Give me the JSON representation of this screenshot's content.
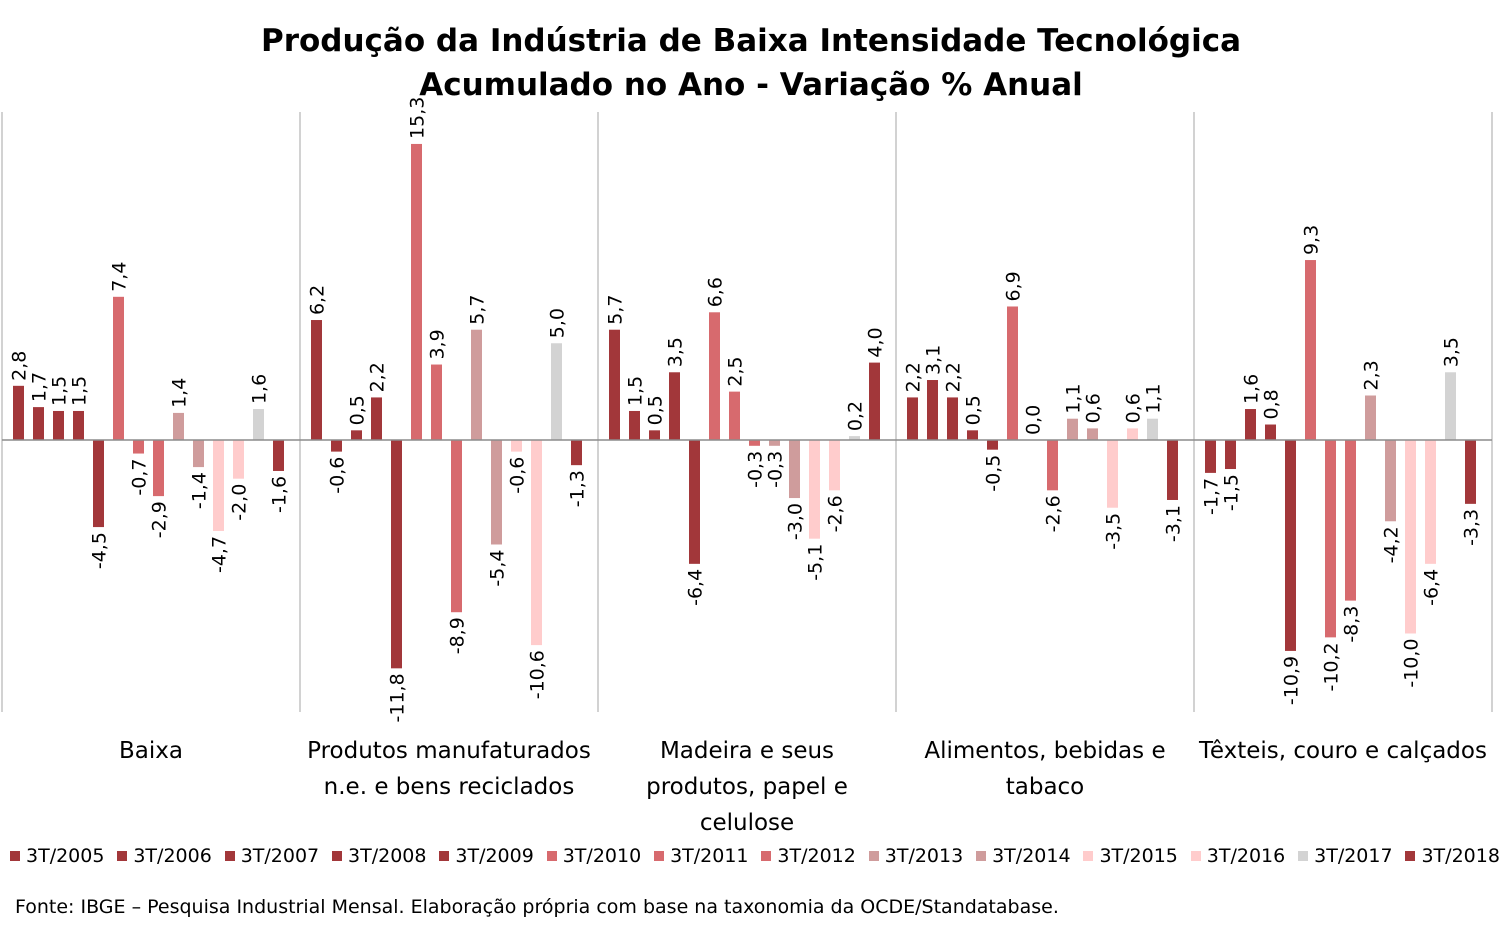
{
  "chart_data": {
    "type": "bar",
    "title": "Produção da Indústria de Baixa Intensidade Tecnológica",
    "subtitle": "Acumulado no Ano - Variação % Anual",
    "categories": [
      "Baixa",
      "Produtos manufaturados n.e. e bens reciclados",
      "Madeira e seus produtos, papel e celulose",
      "Alimentos, bebidas e tabaco",
      "Têxteis, couro e calçados"
    ],
    "category_lines": [
      [
        "Baixa"
      ],
      [
        "Produtos manufaturados",
        "n.e. e bens reciclados"
      ],
      [
        "Madeira e seus",
        "produtos, papel e",
        "celulose"
      ],
      [
        "Alimentos, bebidas e",
        "tabaco"
      ],
      [
        "Têxteis, couro e calçados"
      ]
    ],
    "series": [
      {
        "name": "3T/2005",
        "color": "#a2373a",
        "values": [
          2.8,
          6.2,
          5.7,
          2.2,
          -1.7
        ]
      },
      {
        "name": "3T/2006",
        "color": "#a2373a",
        "values": [
          1.7,
          -0.6,
          1.5,
          3.1,
          -1.5
        ]
      },
      {
        "name": "3T/2007",
        "color": "#a2373a",
        "values": [
          1.5,
          0.5,
          0.5,
          2.2,
          1.6
        ]
      },
      {
        "name": "3T/2008",
        "color": "#a2373a",
        "values": [
          1.5,
          2.2,
          3.5,
          0.5,
          0.8
        ]
      },
      {
        "name": "3T/2009",
        "color": "#a2373a",
        "values": [
          -4.5,
          -11.8,
          -6.4,
          -0.5,
          -10.9
        ]
      },
      {
        "name": "3T/2010",
        "color": "#d76a6e",
        "values": [
          7.4,
          15.3,
          6.6,
          6.9,
          9.3
        ]
      },
      {
        "name": "3T/2011",
        "color": "#d76a6e",
        "values": [
          -0.7,
          3.9,
          2.5,
          0.0,
          -10.2
        ]
      },
      {
        "name": "3T/2012",
        "color": "#d76a6e",
        "values": [
          -2.9,
          -8.9,
          -0.3,
          -2.6,
          -8.3
        ]
      },
      {
        "name": "3T/2013",
        "color": "#cf9c9c",
        "values": [
          1.4,
          5.7,
          -0.3,
          1.1,
          2.3
        ]
      },
      {
        "name": "3T/2014",
        "color": "#cf9c9c",
        "values": [
          -1.4,
          -5.4,
          -3.0,
          0.6,
          -4.2
        ]
      },
      {
        "name": "3T/2015",
        "color": "#ffcccc",
        "values": [
          -4.7,
          -0.6,
          -5.1,
          -3.5,
          -10.0
        ]
      },
      {
        "name": "3T/2016",
        "color": "#ffcccc",
        "values": [
          -2.0,
          -10.6,
          -2.6,
          0.6,
          -6.4
        ]
      },
      {
        "name": "3T/2017",
        "color": "#d3d3d3",
        "values": [
          1.6,
          5.0,
          0.2,
          1.1,
          3.5
        ]
      },
      {
        "name": "3T/2018",
        "color": "#a2373a",
        "values": [
          -1.6,
          -1.3,
          4.0,
          -3.1,
          -3.3
        ]
      }
    ],
    "ylim": [
      -14,
      17
    ],
    "grid": false,
    "legend_position": "bottom",
    "decimal_separator": ","
  },
  "source": "Fonte: IBGE – Pesquisa Industrial Mensal. Elaboração própria com base na taxonomia da OCDE/Standatabase."
}
